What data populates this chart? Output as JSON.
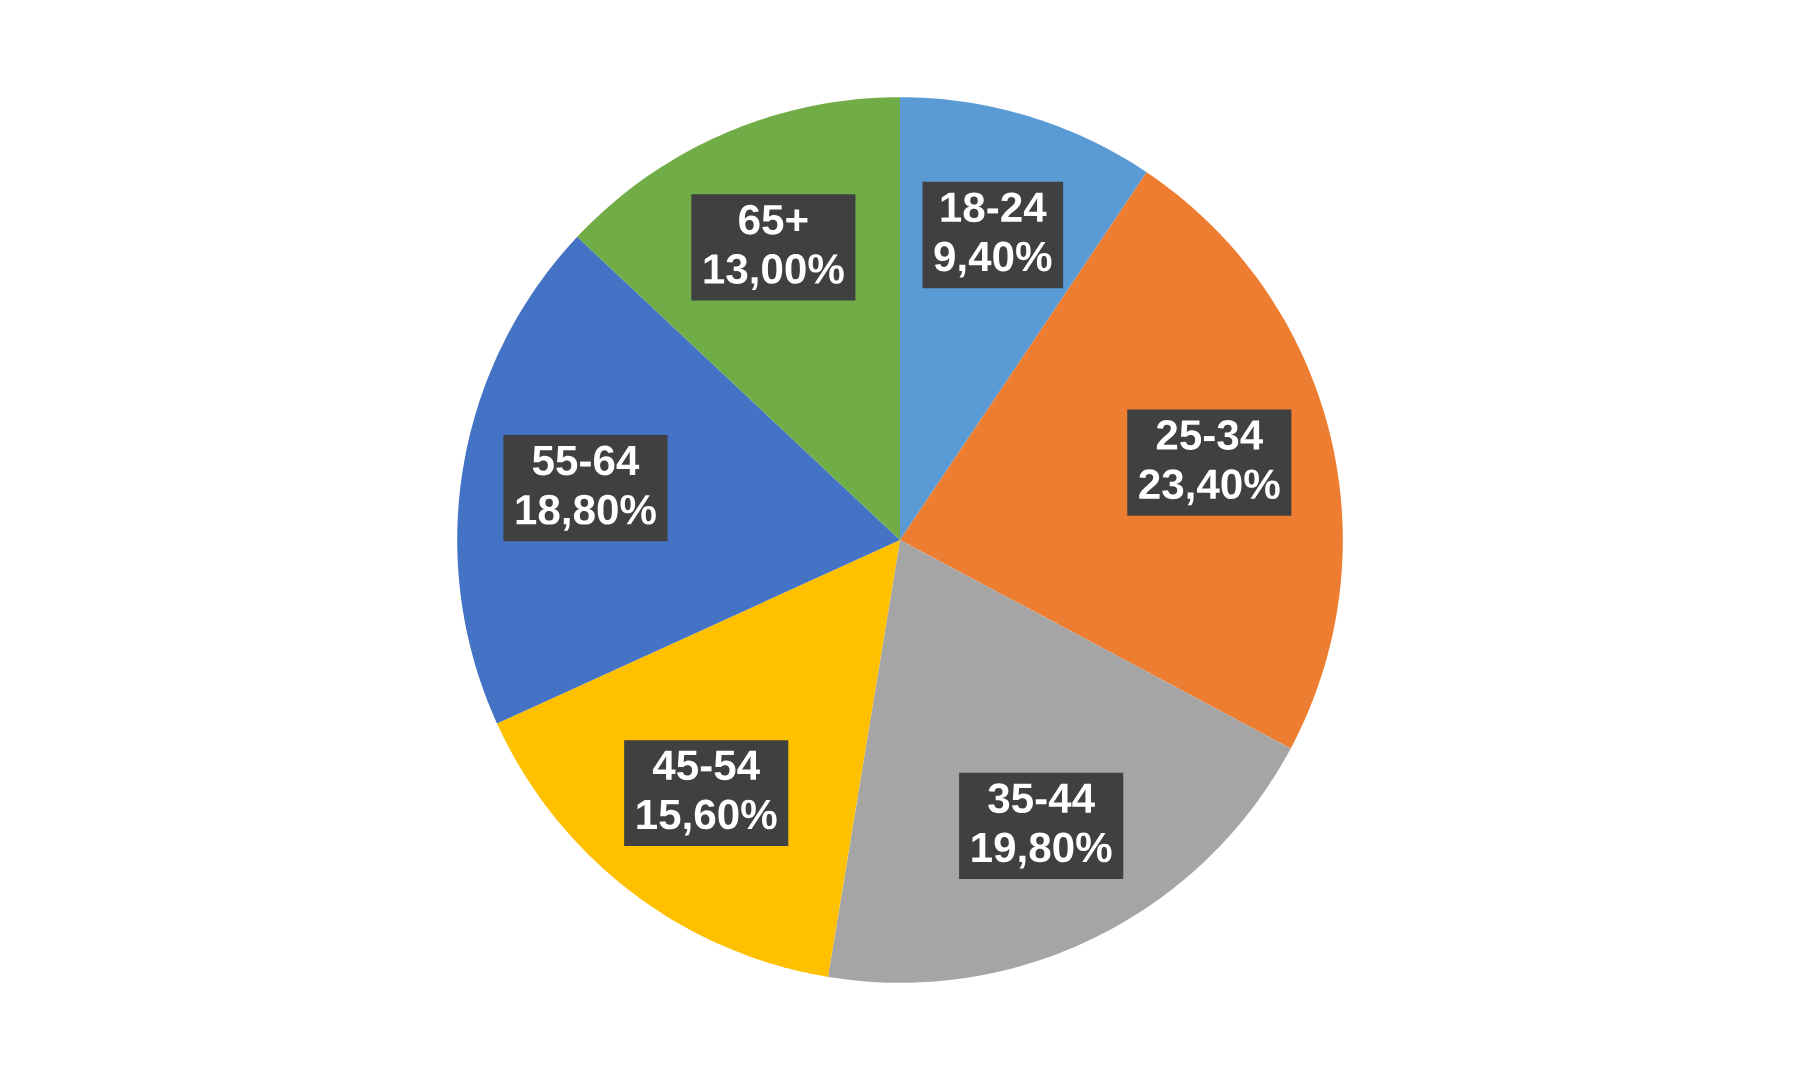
{
  "chart_data": {
    "type": "pie",
    "categories": [
      "18-24",
      "25-34",
      "35-44",
      "45-54",
      "55-64",
      "65+"
    ],
    "values": [
      9.4,
      23.4,
      19.8,
      15.6,
      18.8,
      13.0
    ],
    "colors": [
      "#5b9bd5",
      "#ed7d31",
      "#a5a5a5",
      "#ffc000",
      "#4472c4",
      "#70ad47"
    ],
    "value_labels": [
      "9,40%",
      "23,40%",
      "19,80%",
      "15,60%",
      "18,80%",
      "13,00%"
    ]
  }
}
